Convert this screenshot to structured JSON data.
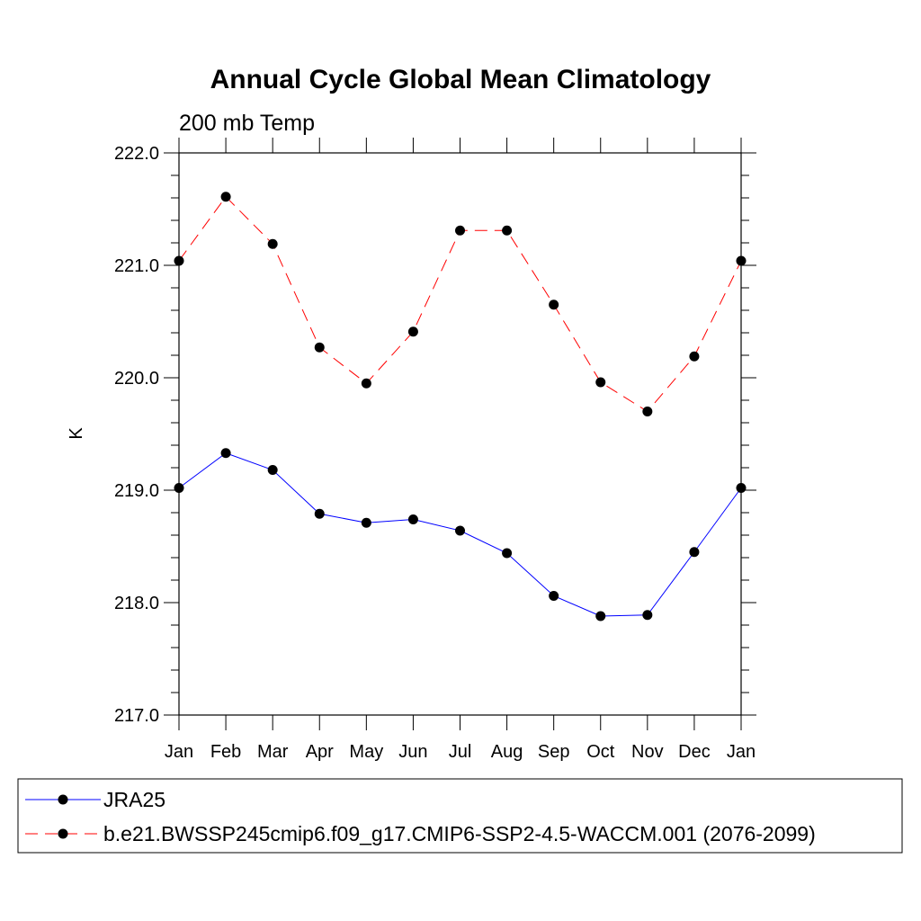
{
  "chart_data": {
    "type": "line",
    "title": "Annual Cycle Global Mean Climatology",
    "subtitle": "200 mb Temp",
    "xlabel": "",
    "ylabel": "K",
    "categories": [
      "Jan",
      "Feb",
      "Mar",
      "Apr",
      "May",
      "Jun",
      "Jul",
      "Aug",
      "Sep",
      "Oct",
      "Nov",
      "Dec",
      "Jan"
    ],
    "ylim": [
      217.0,
      222.0
    ],
    "yticks": [
      "217.0",
      "218.0",
      "219.0",
      "220.0",
      "221.0",
      "222.0"
    ],
    "series": [
      {
        "name": "JRA25",
        "color": "#0000ff",
        "dash": "solid",
        "marker": "filled-circle",
        "values": [
          219.02,
          219.33,
          219.18,
          218.79,
          218.71,
          218.74,
          218.64,
          218.44,
          218.06,
          217.88,
          217.89,
          218.45,
          219.02
        ]
      },
      {
        "name": "b.e21.BWSSP245cmip6.f09_g17.CMIP6-SSP2-4.5-WACCM.001 (2076-2099)",
        "color": "#ff0000",
        "dash": "dashed",
        "marker": "filled-circle",
        "values": [
          221.04,
          221.61,
          221.19,
          220.27,
          219.95,
          220.41,
          221.31,
          221.31,
          220.65,
          219.96,
          219.7,
          220.19,
          221.04
        ]
      }
    ],
    "legend_position": "bottom",
    "grid": false
  }
}
